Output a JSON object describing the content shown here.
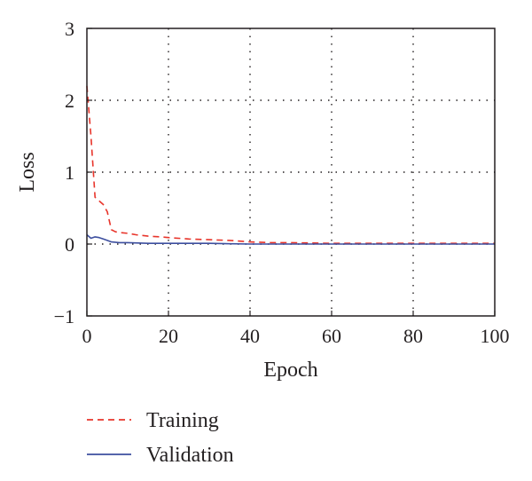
{
  "chart_data": {
    "type": "line",
    "title": "",
    "xlabel": "Epoch",
    "ylabel": "Loss",
    "xlim": [
      0,
      100
    ],
    "ylim": [
      -1,
      3
    ],
    "xticks": [
      0,
      20,
      40,
      60,
      80,
      100
    ],
    "yticks": [
      -1,
      0,
      1,
      2,
      3
    ],
    "ytick_labels": [
      "−1",
      "0",
      "1",
      "2",
      "3"
    ],
    "grid": true,
    "legend_position": "bottom-left",
    "series": [
      {
        "name": "Training",
        "style": "dashed",
        "color": "#e8352b",
        "x": [
          0,
          1,
          2,
          3,
          4,
          5,
          6,
          7,
          8,
          10,
          12,
          15,
          18,
          20,
          25,
          30,
          35,
          40,
          45,
          50,
          60,
          70,
          80,
          90,
          100
        ],
        "y": [
          2.2,
          1.5,
          0.65,
          0.6,
          0.55,
          0.45,
          0.2,
          0.17,
          0.16,
          0.15,
          0.13,
          0.11,
          0.1,
          0.09,
          0.07,
          0.06,
          0.05,
          0.03,
          0.02,
          0.02,
          0.01,
          0.01,
          0.01,
          0.01,
          0.01
        ]
      },
      {
        "name": "Validation",
        "style": "solid",
        "color": "#3d4f9f",
        "x": [
          0,
          1,
          2,
          3,
          4,
          5,
          6,
          8,
          10,
          15,
          20,
          30,
          40,
          50,
          60,
          70,
          80,
          90,
          100
        ],
        "y": [
          0.13,
          0.08,
          0.1,
          0.09,
          0.07,
          0.05,
          0.03,
          0.02,
          0.02,
          0.01,
          0.01,
          0.01,
          0.0,
          0.0,
          0.0,
          0.0,
          0.0,
          0.0,
          0.0
        ]
      }
    ]
  }
}
